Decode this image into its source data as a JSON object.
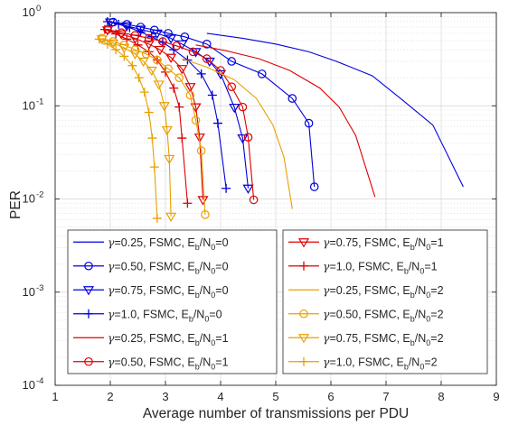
{
  "chart_data": {
    "type": "line",
    "xlabel": "Average number of transmissions per PDU",
    "ylabel": "PER",
    "xlim": [
      1,
      9
    ],
    "ylim": [
      0.0001,
      1
    ],
    "yscale": "log",
    "grid": true,
    "x_ticks": [
      "1",
      "2",
      "3",
      "4",
      "5",
      "6",
      "7",
      "8",
      "9"
    ],
    "y_ticks": [
      {
        "value": 1,
        "base": "10",
        "exp": "0"
      },
      {
        "value": 0.1,
        "base": "10",
        "exp": "-1"
      },
      {
        "value": 0.01,
        "base": "10",
        "exp": "-2"
      },
      {
        "value": 0.001,
        "base": "10",
        "exp": "-3"
      },
      {
        "value": 0.0001,
        "base": "10",
        "exp": "-4"
      }
    ],
    "legend_placement": "bottom, two columns",
    "series": [
      {
        "name": "γ=0.25, FSMC, E_b/N_0=0",
        "gamma": "=0.25, FSMC, E",
        "eb": "/N",
        "eq": "=0",
        "color": "#0000dd",
        "marker": "none",
        "x": [
          3.75,
          4.4,
          5.0,
          5.6,
          6.1,
          6.75,
          7.3,
          7.85,
          8.4
        ],
        "y": [
          0.6,
          0.53,
          0.46,
          0.38,
          0.3,
          0.21,
          0.115,
          0.062,
          0.0135
        ]
      },
      {
        "name": "γ=0.50, FSMC, E_b/N_0=0",
        "gamma": "=0.50, FSMC, E",
        "eb": "/N",
        "eq": "=0",
        "color": "#0000dd",
        "marker": "circle",
        "x": [
          2.05,
          2.3,
          2.55,
          2.8,
          3.05,
          3.35,
          3.75,
          4.2,
          4.75,
          5.3,
          5.6,
          5.7
        ],
        "y": [
          0.79,
          0.75,
          0.7,
          0.65,
          0.6,
          0.55,
          0.46,
          0.3,
          0.22,
          0.12,
          0.065,
          0.0135
        ]
      },
      {
        "name": "γ=0.75, FSMC, E_b/N_0=0",
        "gamma": "=0.75, FSMC, E",
        "eb": "/N",
        "eq": "=0",
        "color": "#0000dd",
        "marker": "triangle",
        "x": [
          2.0,
          2.3,
          2.55,
          2.85,
          3.1,
          3.3,
          3.55,
          3.8,
          4.0,
          4.25,
          4.4,
          4.5
        ],
        "y": [
          0.79,
          0.72,
          0.66,
          0.6,
          0.53,
          0.46,
          0.38,
          0.3,
          0.22,
          0.096,
          0.045,
          0.013
        ]
      },
      {
        "name": "γ=1.0, FSMC, E_b/N_0=0",
        "gamma": "=1.0, FSMC, E",
        "eb": "/N",
        "eq": "=0",
        "color": "#0000dd",
        "marker": "plus",
        "x": [
          1.95,
          2.15,
          2.35,
          2.55,
          2.75,
          2.95,
          3.15,
          3.4,
          3.65,
          3.85,
          3.95,
          4.1
        ],
        "y": [
          0.8,
          0.75,
          0.69,
          0.62,
          0.55,
          0.48,
          0.4,
          0.31,
          0.22,
          0.13,
          0.065,
          0.013
        ]
      },
      {
        "name": "γ=0.25, FSMC, E_b/N_0=1",
        "gamma": "=0.25, FSMC, E",
        "eb": "/N",
        "eq": "=1",
        "color": "#dd0000",
        "marker": "none",
        "x": [
          3.55,
          4.1,
          4.7,
          5.25,
          5.8,
          6.15,
          6.45,
          6.8
        ],
        "y": [
          0.45,
          0.39,
          0.32,
          0.24,
          0.155,
          0.097,
          0.048,
          0.0105
        ]
      },
      {
        "name": "γ=0.50, FSMC, E_b/N_0=1",
        "gamma": "=0.50, FSMC, E",
        "eb": "/N",
        "eq": "=1",
        "color": "#dd0000",
        "marker": "circle",
        "x": [
          1.95,
          2.2,
          2.45,
          2.7,
          2.95,
          3.2,
          3.5,
          3.75,
          4.0,
          4.2,
          4.4,
          4.5,
          4.6
        ],
        "y": [
          0.66,
          0.61,
          0.57,
          0.53,
          0.49,
          0.44,
          0.38,
          0.32,
          0.24,
          0.16,
          0.097,
          0.046,
          0.0098
        ]
      },
      {
        "name": "γ=0.75, FSMC, E_b/N_0=1",
        "gamma": "=0.75, FSMC, E",
        "eb": "/N",
        "eq": "=1",
        "color": "#dd0000",
        "marker": "triangle",
        "x": [
          1.95,
          2.2,
          2.45,
          2.7,
          2.9,
          3.1,
          3.3,
          3.45,
          3.55,
          3.62,
          3.68
        ],
        "y": [
          0.65,
          0.59,
          0.53,
          0.46,
          0.4,
          0.33,
          0.25,
          0.16,
          0.097,
          0.046,
          0.0098
        ]
      },
      {
        "name": "γ=1.0, FSMC, E_b/N_0=1",
        "gamma": "=1.0, FSMC, E",
        "eb": "/N",
        "eq": "=1",
        "color": "#dd0000",
        "marker": "plus",
        "x": [
          1.9,
          2.1,
          2.3,
          2.5,
          2.7,
          2.85,
          3.0,
          3.15,
          3.25,
          3.3,
          3.4
        ],
        "y": [
          0.66,
          0.59,
          0.52,
          0.45,
          0.38,
          0.31,
          0.23,
          0.155,
          0.097,
          0.045,
          0.009
        ]
      },
      {
        "name": "γ=0.25, FSMC, E_b/N_0=2",
        "gamma": "=0.25, FSMC, E",
        "eb": "/N",
        "eq": "=2",
        "color": "#e8a000",
        "marker": "none",
        "x": [
          3.3,
          3.75,
          4.25,
          4.65,
          4.95,
          5.15,
          5.3
        ],
        "y": [
          0.32,
          0.26,
          0.19,
          0.12,
          0.062,
          0.028,
          0.0078
        ]
      },
      {
        "name": "γ=0.50, FSMC, E_b/N_0=2",
        "gamma": "=0.50, FSMC, E",
        "eb": "/N",
        "eq": "=2",
        "color": "#e8a000",
        "marker": "circle",
        "x": [
          1.85,
          2.05,
          2.25,
          2.45,
          2.65,
          2.85,
          3.05,
          3.25,
          3.45,
          3.55,
          3.65,
          3.72
        ],
        "y": [
          0.53,
          0.49,
          0.45,
          0.4,
          0.36,
          0.31,
          0.25,
          0.2,
          0.13,
          0.07,
          0.033,
          0.0068
        ]
      },
      {
        "name": "γ=0.75, FSMC, E_b/N_0=2",
        "gamma": "=0.75, FSMC, E",
        "eb": "/N",
        "eq": "=2",
        "color": "#e8a000",
        "marker": "triangle",
        "x": [
          1.85,
          2.05,
          2.25,
          2.45,
          2.6,
          2.75,
          2.88,
          2.98,
          3.03,
          3.07,
          3.1
        ],
        "y": [
          0.52,
          0.47,
          0.42,
          0.36,
          0.3,
          0.24,
          0.17,
          0.1,
          0.055,
          0.027,
          0.0065
        ]
      },
      {
        "name": "γ=1.0, FSMC, E_b/N_0=2",
        "gamma": "=1.0, FSMC, E",
        "eb": "/N",
        "eq": "=2",
        "color": "#e8a000",
        "marker": "plus",
        "x": [
          1.8,
          1.95,
          2.1,
          2.25,
          2.4,
          2.52,
          2.62,
          2.7,
          2.76,
          2.8,
          2.85
        ],
        "y": [
          0.52,
          0.46,
          0.4,
          0.34,
          0.27,
          0.2,
          0.14,
          0.085,
          0.045,
          0.022,
          0.0062
        ]
      }
    ]
  }
}
